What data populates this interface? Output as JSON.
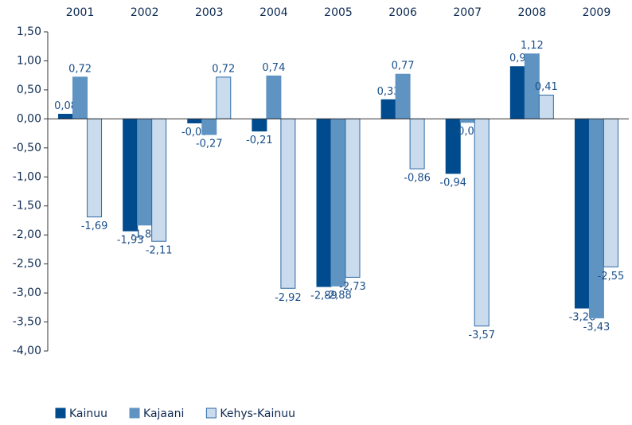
{
  "chart_data": {
    "type": "bar",
    "categories": [
      "2001",
      "2002",
      "2003",
      "2004",
      "2005",
      "2006",
      "2007",
      "2008",
      "2009"
    ],
    "series": [
      {
        "name": "Kainuu",
        "color": "#004b8d",
        "values": [
          0.08,
          -1.93,
          -0.07,
          -0.21,
          -2.89,
          0.33,
          -0.94,
          0.9,
          -3.26
        ],
        "value_labels": [
          "0,08",
          "-1,93",
          "-0,07",
          "-0,21",
          "-2,89",
          "0,33",
          "-0,94",
          "0,9",
          "-3,26"
        ]
      },
      {
        "name": "Kajaani",
        "color": "#5f93c2",
        "values": [
          0.72,
          -1.83,
          -0.27,
          0.74,
          -2.88,
          0.77,
          -0.06,
          1.12,
          -3.43
        ],
        "value_labels": [
          "0,72",
          "-1,83",
          "-0,27",
          "0,74",
          "-2,88",
          "0,77",
          "-0,06",
          "1,12",
          "-3,43"
        ]
      },
      {
        "name": "Kehys-Kainuu",
        "color": "#c9dbec",
        "values": [
          -1.69,
          -2.11,
          0.72,
          -2.92,
          -2.73,
          -0.86,
          -3.57,
          0.41,
          -2.55
        ],
        "value_labels": [
          "-1,69",
          "-2,11",
          "0,72",
          "-2,92",
          "-2,73",
          "-0,86",
          "-3,57",
          "0,41",
          "-2,55"
        ]
      }
    ],
    "ylim": [
      -4,
      1.5
    ],
    "yticks": [
      {
        "value": -4,
        "label": "-4,00"
      },
      {
        "value": -3.5,
        "label": "-3,50"
      },
      {
        "value": -3,
        "label": "-3,00"
      },
      {
        "value": -2.5,
        "label": "-2,50"
      },
      {
        "value": -2,
        "label": "-2,00"
      },
      {
        "value": -1.5,
        "label": "-1,50"
      },
      {
        "value": -1,
        "label": "-1,00"
      },
      {
        "value": -0.5,
        "label": "-0,50"
      },
      {
        "value": 0,
        "label": "0,00"
      },
      {
        "value": 0.5,
        "label": "0,50"
      },
      {
        "value": 1,
        "label": "1,00"
      },
      {
        "value": 1.5,
        "label": "1,50"
      }
    ],
    "legend": "bottom-left"
  }
}
